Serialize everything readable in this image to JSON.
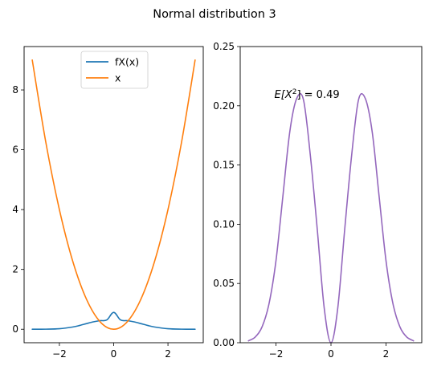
{
  "title": "Normal distribution 3",
  "chart_data": [
    {
      "type": "line",
      "panel": "left",
      "xlim": [
        -3.3,
        3.3
      ],
      "ylim": [
        -0.45,
        9.45
      ],
      "xticks": [
        -2,
        0,
        2
      ],
      "xtick_labels": [
        "−2",
        "0",
        "2"
      ],
      "yticks": [
        0,
        2,
        4,
        6,
        8
      ],
      "ytick_labels": [
        "0",
        "2",
        "4",
        "6",
        "8"
      ],
      "legend_position": "upper-center",
      "series": [
        {
          "name": "fX(x)",
          "color": "#1f77b4",
          "x": [
            -3.0,
            -2.5,
            -2.0,
            -1.5,
            -1.25,
            -1.0,
            -0.75,
            -0.5,
            -0.25,
            0.0,
            0.25,
            0.5,
            0.75,
            1.0,
            1.25,
            1.5,
            2.0,
            2.5,
            3.0
          ],
          "y": [
            0.0002,
            0.0025,
            0.0173,
            0.0763,
            0.1279,
            0.1894,
            0.2481,
            0.2876,
            0.3123,
            0.565,
            0.3123,
            0.2876,
            0.2481,
            0.1894,
            0.1279,
            0.0763,
            0.0173,
            0.0025,
            0.0002
          ]
        },
        {
          "name": "x",
          "color": "#ff7f0e",
          "x": [
            -3.0,
            -2.5,
            -2.0,
            -1.5,
            -1.0,
            -0.5,
            0.0,
            0.5,
            1.0,
            1.5,
            2.0,
            2.5,
            3.0
          ],
          "y": [
            9.0,
            6.25,
            4.0,
            2.25,
            1.0,
            0.25,
            0.0,
            0.25,
            1.0,
            2.25,
            4.0,
            6.25,
            9.0
          ]
        }
      ]
    },
    {
      "type": "line",
      "panel": "right",
      "xlim": [
        -3.3,
        3.3
      ],
      "ylim": [
        0,
        0.25
      ],
      "xticks": [
        -2,
        0,
        2
      ],
      "xtick_labels": [
        "−2",
        "0",
        "2"
      ],
      "yticks": [
        0.0,
        0.05,
        0.1,
        0.15,
        0.2,
        0.25
      ],
      "ytick_labels": [
        "0.00",
        "0.05",
        "0.10",
        "0.15",
        "0.20",
        "0.25"
      ],
      "annotation": {
        "prefix": "E[X",
        "sup": "2",
        "suffix": "] = 0.49",
        "x": -2.0,
        "y": 0.21
      },
      "series": [
        {
          "color": "#9467bd",
          "x": [
            -3.0,
            -2.75,
            -2.5,
            -2.25,
            -2.0,
            -1.75,
            -1.5,
            -1.25,
            -1.0,
            -0.75,
            -0.5,
            -0.25,
            0.0,
            0.25,
            0.5,
            0.75,
            1.0,
            1.25,
            1.5,
            1.75,
            2.0,
            2.25,
            2.5,
            2.75,
            3.0
          ],
          "y": [
            0.0016,
            0.0049,
            0.0137,
            0.0332,
            0.0692,
            0.1234,
            0.1777,
            0.206,
            0.205,
            0.158,
            0.096,
            0.03,
            0.0,
            0.03,
            0.096,
            0.158,
            0.205,
            0.206,
            0.1777,
            0.1234,
            0.0692,
            0.0332,
            0.0137,
            0.0049,
            0.0016
          ]
        }
      ]
    }
  ]
}
